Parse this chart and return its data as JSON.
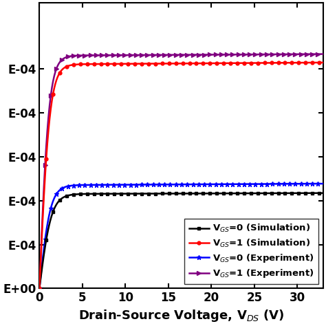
{
  "title": "",
  "xlabel": "Drain-Source Voltage, V$_{DS}$ (V)",
  "xlim": [
    0,
    33
  ],
  "ylim": [
    0,
    0.00065
  ],
  "xticks": [
    0,
    5,
    10,
    15,
    20,
    25,
    30
  ],
  "ytick_values": [
    0.0,
    0.0001,
    0.0002,
    0.0003,
    0.0004,
    0.0005
  ],
  "ytick_labels": [
    "E+00",
    "E-04",
    "E-04",
    "E-04",
    "E-04",
    "E-04"
  ],
  "legend": [
    {
      "label": "V$_{GS}$=0 (Simulation)",
      "color": "#000000",
      "marker": "s",
      "linestyle": "-"
    },
    {
      "label": "V$_{GS}$=1 (Simulation)",
      "color": "#ff0000",
      "marker": "o",
      "linestyle": "-"
    },
    {
      "label": "V$_{GS}$=0 (Experiment)",
      "color": "#0000ff",
      "marker": "*",
      "linestyle": "-"
    },
    {
      "label": "V$_{GS}$=1 (Experiment)",
      "color": "#800080",
      "marker": ">",
      "linestyle": "-"
    }
  ],
  "curves": {
    "sim_vgs0": {
      "Isat": 0.000215,
      "Vknee": 3.5,
      "slope": 0.0003
    },
    "sim_vgs1": {
      "Isat": 0.00051,
      "Vknee": 3.0,
      "slope": 0.00025
    },
    "exp_vgs0": {
      "Isat": 0.000235,
      "Vknee": 3.2,
      "slope": 0.00045
    },
    "exp_vgs1": {
      "Isat": 0.00053,
      "Vknee": 2.8,
      "slope": 0.0002
    }
  },
  "background_color": "#ffffff",
  "tick_fontsize": 12,
  "label_fontsize": 13,
  "legend_fontsize": 9.5,
  "linewidth": 1.8,
  "marker_size_sim": 3.5,
  "marker_size_exp": 4.5
}
